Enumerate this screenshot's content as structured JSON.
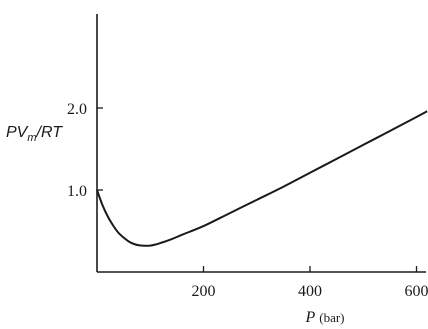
{
  "chart_data": {
    "type": "line",
    "title": "",
    "xlabel": "P (bar)",
    "xlabel_parts": {
      "var": "P",
      "unit": "(bar)"
    },
    "ylabel": "PVm/RT",
    "ylabel_parts": {
      "main": "PV",
      "sub": "m",
      "rest": "/RT"
    },
    "xlim": [
      0,
      620
    ],
    "ylim": [
      0,
      2.7
    ],
    "x_ticks": [
      {
        "value": 200,
        "label": "200"
      },
      {
        "value": 400,
        "label": "400"
      },
      {
        "value": 600,
        "label": "600"
      }
    ],
    "y_ticks": [
      {
        "value": 1.0,
        "label": "1.0"
      },
      {
        "value": 2.0,
        "label": "2.0"
      }
    ],
    "grid": false,
    "line_color": "#1a1a1a",
    "series": [
      {
        "x": [
          0,
          10,
          20,
          30,
          40,
          50,
          60,
          70,
          80,
          90,
          100,
          110,
          120,
          140,
          160,
          200,
          250,
          300,
          350,
          400,
          450,
          500,
          550,
          600,
          620
        ],
        "y": [
          1.0,
          0.82,
          0.68,
          0.57,
          0.48,
          0.42,
          0.37,
          0.34,
          0.325,
          0.32,
          0.322,
          0.335,
          0.355,
          0.4,
          0.455,
          0.56,
          0.72,
          0.88,
          1.04,
          1.21,
          1.38,
          1.55,
          1.72,
          1.89,
          1.96
        ]
      }
    ]
  }
}
